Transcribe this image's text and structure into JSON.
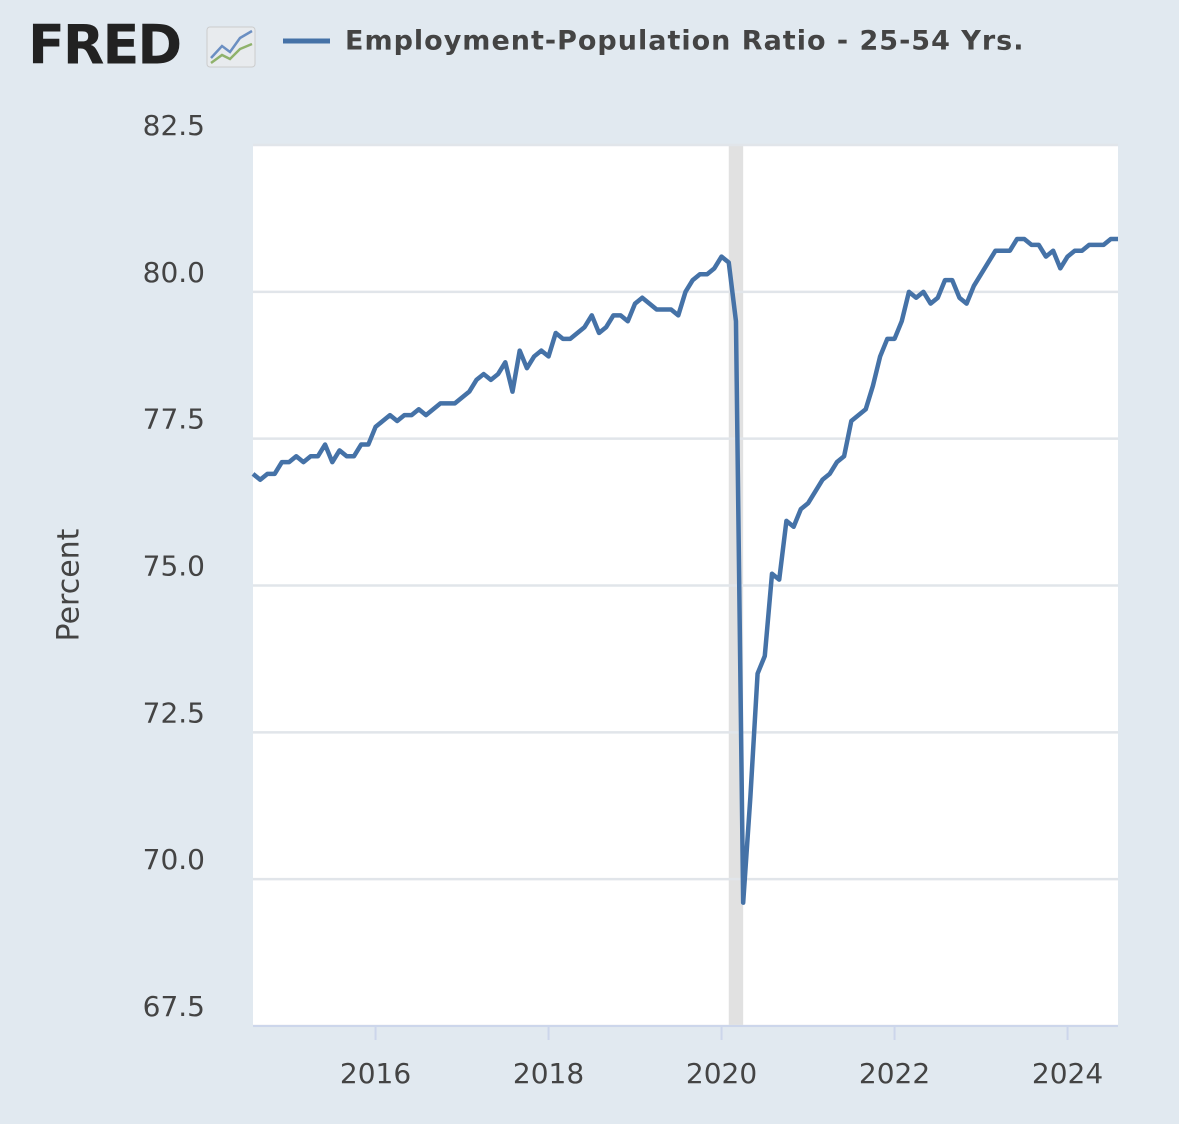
{
  "chart_data": {
    "type": "line",
    "logo": "FRED",
    "ylabel": "Percent",
    "x": [
      "2014-08",
      "2014-09",
      "2014-10",
      "2014-11",
      "2014-12",
      "2015-01",
      "2015-02",
      "2015-03",
      "2015-04",
      "2015-05",
      "2015-06",
      "2015-07",
      "2015-08",
      "2015-09",
      "2015-10",
      "2015-11",
      "2015-12",
      "2016-01",
      "2016-02",
      "2016-03",
      "2016-04",
      "2016-05",
      "2016-06",
      "2016-07",
      "2016-08",
      "2016-09",
      "2016-10",
      "2016-11",
      "2016-12",
      "2017-01",
      "2017-02",
      "2017-03",
      "2017-04",
      "2017-05",
      "2017-06",
      "2017-07",
      "2017-08",
      "2017-09",
      "2017-10",
      "2017-11",
      "2017-12",
      "2018-01",
      "2018-02",
      "2018-03",
      "2018-04",
      "2018-05",
      "2018-06",
      "2018-07",
      "2018-08",
      "2018-09",
      "2018-10",
      "2018-11",
      "2018-12",
      "2019-01",
      "2019-02",
      "2019-03",
      "2019-04",
      "2019-05",
      "2019-06",
      "2019-07",
      "2019-08",
      "2019-09",
      "2019-10",
      "2019-11",
      "2019-12",
      "2020-01",
      "2020-02",
      "2020-03",
      "2020-04",
      "2020-05",
      "2020-06",
      "2020-07",
      "2020-08",
      "2020-09",
      "2020-10",
      "2020-11",
      "2020-12",
      "2021-01",
      "2021-02",
      "2021-03",
      "2021-04",
      "2021-05",
      "2021-06",
      "2021-07",
      "2021-08",
      "2021-09",
      "2021-10",
      "2021-11",
      "2021-12",
      "2022-01",
      "2022-02",
      "2022-03",
      "2022-04",
      "2022-05",
      "2022-06",
      "2022-07",
      "2022-08",
      "2022-09",
      "2022-10",
      "2022-11",
      "2022-12",
      "2023-01",
      "2023-02",
      "2023-03",
      "2023-04",
      "2023-05",
      "2023-06",
      "2023-07",
      "2023-08",
      "2023-09",
      "2023-10",
      "2023-11",
      "2023-12",
      "2024-01",
      "2024-02",
      "2024-03",
      "2024-04",
      "2024-05",
      "2024-06",
      "2024-07",
      "2024-08"
    ],
    "series": [
      {
        "name": "Employment-Population Ratio - 25-54 Yrs.",
        "color": "#4572a7",
        "values": [
          76.9,
          76.8,
          76.9,
          76.9,
          77.1,
          77.1,
          77.2,
          77.1,
          77.2,
          77.2,
          77.4,
          77.1,
          77.3,
          77.2,
          77.2,
          77.4,
          77.4,
          77.7,
          77.8,
          77.9,
          77.8,
          77.9,
          77.9,
          78.0,
          77.9,
          78.0,
          78.1,
          78.1,
          78.1,
          78.2,
          78.3,
          78.5,
          78.6,
          78.5,
          78.6,
          78.8,
          78.3,
          79.0,
          78.7,
          78.9,
          79.0,
          78.9,
          79.3,
          79.2,
          79.2,
          79.3,
          79.4,
          79.6,
          79.3,
          79.4,
          79.6,
          79.6,
          79.5,
          79.8,
          79.9,
          79.8,
          79.7,
          79.7,
          79.7,
          79.6,
          80.0,
          80.2,
          80.3,
          80.3,
          80.4,
          80.6,
          80.5,
          79.5,
          69.6,
          71.4,
          73.5,
          73.8,
          75.2,
          75.1,
          76.1,
          76.0,
          76.3,
          76.4,
          76.6,
          76.8,
          76.9,
          77.1,
          77.2,
          77.8,
          77.9,
          78.0,
          78.4,
          78.9,
          79.2,
          79.2,
          79.5,
          80.0,
          79.9,
          80.0,
          79.8,
          79.9,
          80.2,
          80.2,
          79.9,
          79.8,
          80.1,
          80.3,
          80.5,
          80.7,
          80.7,
          80.7,
          80.9,
          80.9,
          80.8,
          80.8,
          80.6,
          80.7,
          80.4,
          80.6,
          80.7,
          80.7,
          80.8,
          80.8,
          80.8,
          80.9,
          80.9
        ]
      }
    ],
    "recession": {
      "start": "2020-02",
      "end": "2020-04"
    },
    "xlim": [
      "2014-08",
      "2024-08"
    ],
    "xticks": [
      2016,
      2018,
      2020,
      2022,
      2024
    ],
    "ylim": [
      67.5,
      82.5
    ],
    "yticks": [
      67.5,
      {
        "value": 70,
        "label": "70.0"
      },
      72.5,
      {
        "value": 75,
        "label": "75.0"
      },
      77.5,
      {
        "value": 80,
        "label": "80.0"
      },
      82.5
    ],
    "grid": true
  }
}
